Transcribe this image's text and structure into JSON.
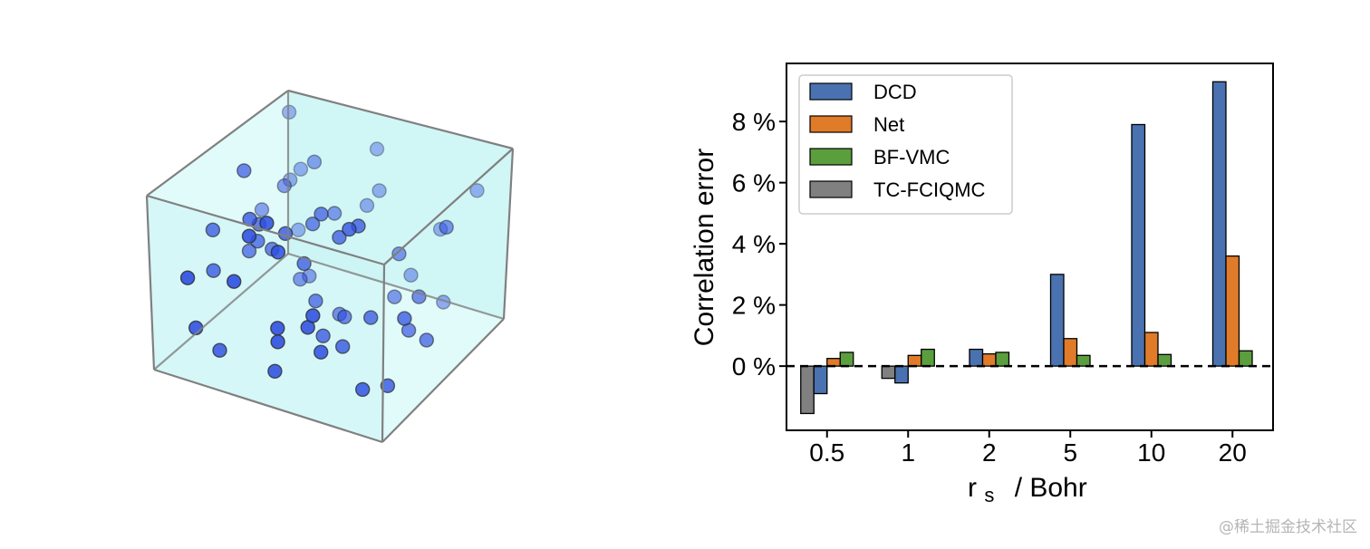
{
  "chart_data": {
    "type": "bar",
    "categories": [
      "0.5",
      "1",
      "2",
      "5",
      "10",
      "20"
    ],
    "xlabel_main": "r",
    "xlabel_sub": "s",
    "xlabel_unit": "/ Bohr",
    "ylabel": "Correlation error",
    "ylim": [
      -2.1,
      9.9
    ],
    "yticks": [
      0,
      2,
      4,
      6,
      8
    ],
    "ytick_labels": [
      "0 %",
      "2 %",
      "4 %",
      "6 %",
      "8 %"
    ],
    "reference_line": 0,
    "series": [
      {
        "name": "DCD",
        "color": "#4a72b0",
        "values": [
          -0.9,
          -0.55,
          0.55,
          3.0,
          7.9,
          9.3
        ]
      },
      {
        "name": "Net",
        "color": "#e07b2a",
        "values": [
          0.25,
          0.35,
          0.4,
          0.9,
          1.1,
          3.6
        ]
      },
      {
        "name": "BF-VMC",
        "color": "#5b9e3e",
        "values": [
          0.45,
          0.55,
          0.45,
          0.35,
          0.38,
          0.5
        ]
      },
      {
        "name": "TC-FCIQMC",
        "color": "#808080",
        "values": [
          -1.55,
          -0.4,
          null,
          null,
          null,
          null
        ]
      }
    ],
    "bar_order": [
      "TC-FCIQMC",
      "DCD",
      "Net",
      "BF-VMC"
    ],
    "legend_position": "top-left"
  },
  "box_figure": {
    "face_color": "#c9f5f5",
    "edge_color": "#808080",
    "particle_color": "#2e4fe0",
    "particle_count": 60
  },
  "watermark": "@稀土掘金技术社区"
}
